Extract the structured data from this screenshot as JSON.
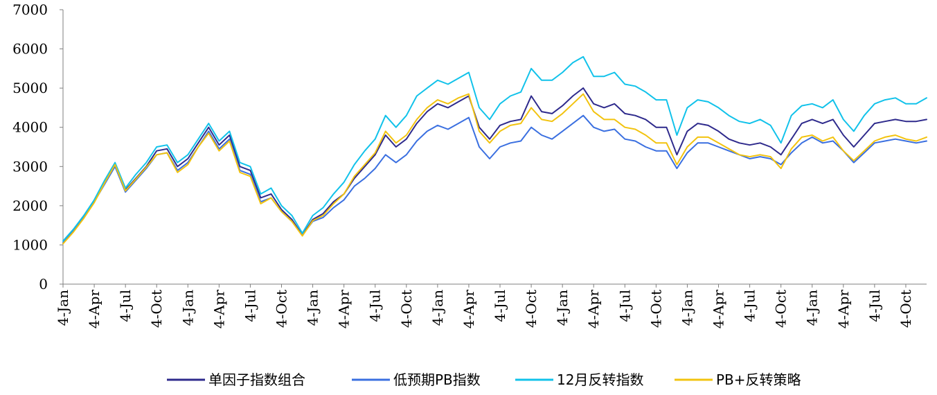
{
  "chart_data": {
    "type": "line",
    "title": "",
    "xlabel": "",
    "ylabel": "",
    "ylim": [
      0,
      7000
    ],
    "yticks": [
      0,
      1000,
      2000,
      3000,
      4000,
      5000,
      6000,
      7000
    ],
    "ytick_labels": [
      "0",
      "1000",
      "2000",
      "3000",
      "4000",
      "5000",
      "6000",
      "7000"
    ],
    "xticks": [
      0,
      3,
      6,
      9,
      12,
      15,
      18,
      21,
      24,
      27,
      30,
      33,
      36,
      39,
      42,
      45,
      48,
      51,
      54,
      57,
      60,
      63,
      66,
      69,
      72,
      75,
      78,
      81
    ],
    "xtick_labels": [
      "4-Jan",
      "4-Apr",
      "4-Jul",
      "4-Oct",
      "4-Jan",
      "4-Apr",
      "4-Jul",
      "4-Oct",
      "4-Jan",
      "4-Apr",
      "4-Jul",
      "4-Oct",
      "4-Jan",
      "4-Apr",
      "4-Jul",
      "4-Oct",
      "4-Jan",
      "4-Apr",
      "4-Jul",
      "4-Oct",
      "4-Jan",
      "4-Apr",
      "4-Jul",
      "4-Oct",
      "4-Jan",
      "4-Apr",
      "4-Jul",
      "4-Oct"
    ],
    "xlim": [
      0,
      83
    ],
    "grid": false,
    "legend_position": "bottom",
    "x": [
      0,
      1,
      2,
      3,
      4,
      5,
      6,
      7,
      8,
      9,
      10,
      11,
      12,
      13,
      14,
      15,
      16,
      17,
      18,
      19,
      20,
      21,
      22,
      23,
      24,
      25,
      26,
      27,
      28,
      29,
      30,
      31,
      32,
      33,
      34,
      35,
      36,
      37,
      38,
      39,
      40,
      41,
      42,
      43,
      44,
      45,
      46,
      47,
      48,
      49,
      50,
      51,
      52,
      53,
      54,
      55,
      56,
      57,
      58,
      59,
      60,
      61,
      62,
      63,
      64,
      65,
      66,
      67,
      68,
      69,
      70,
      71,
      72,
      73,
      74,
      75,
      76,
      77,
      78,
      79,
      80,
      81,
      82,
      83
    ],
    "series": [
      {
        "name": "单因子指数组合",
        "color": "#2e2a8c",
        "values": [
          1050,
          1350,
          1700,
          2100,
          2600,
          3050,
          2400,
          2700,
          3000,
          3400,
          3450,
          3000,
          3200,
          3600,
          4000,
          3550,
          3800,
          3000,
          2900,
          2200,
          2300,
          1900,
          1650,
          1250,
          1650,
          1800,
          2100,
          2300,
          2700,
          3000,
          3300,
          3800,
          3500,
          3700,
          4100,
          4400,
          4600,
          4500,
          4650,
          4800,
          4000,
          3700,
          4050,
          4150,
          4200,
          4800,
          4400,
          4350,
          4550,
          4800,
          5000,
          4600,
          4500,
          4600,
          4350,
          4300,
          4200,
          4000,
          4000,
          3300,
          3900,
          4100,
          4050,
          3900,
          3700,
          3600,
          3550,
          3600,
          3500,
          3300,
          3700,
          4100,
          4200,
          4100,
          4200,
          3800,
          3500,
          3800,
          4100,
          4150,
          4200,
          4150,
          4150,
          4200
        ]
      },
      {
        "name": "低预期PB指数",
        "color": "#3a6fe0",
        "values": [
          1050,
          1350,
          1700,
          2100,
          2550,
          3000,
          2350,
          2650,
          2950,
          3300,
          3350,
          2900,
          3100,
          3500,
          3900,
          3450,
          3700,
          2900,
          2800,
          2100,
          2200,
          1850,
          1600,
          1250,
          1600,
          1700,
          1950,
          2150,
          2500,
          2700,
          2950,
          3300,
          3100,
          3300,
          3650,
          3900,
          4050,
          3950,
          4100,
          4250,
          3500,
          3200,
          3500,
          3600,
          3650,
          4000,
          3800,
          3700,
          3900,
          4100,
          4300,
          4000,
          3900,
          3950,
          3700,
          3650,
          3500,
          3400,
          3400,
          2950,
          3350,
          3600,
          3600,
          3500,
          3400,
          3300,
          3200,
          3250,
          3200,
          3050,
          3350,
          3600,
          3750,
          3600,
          3650,
          3400,
          3100,
          3350,
          3600,
          3650,
          3700,
          3650,
          3600,
          3650
        ]
      },
      {
        "name": "12月反转指数",
        "color": "#11c2ea",
        "values": [
          1100,
          1400,
          1750,
          2150,
          2650,
          3100,
          2450,
          2800,
          3100,
          3500,
          3550,
          3100,
          3300,
          3700,
          4100,
          3650,
          3900,
          3100,
          3000,
          2300,
          2450,
          2000,
          1750,
          1300,
          1750,
          1950,
          2300,
          2600,
          3050,
          3400,
          3700,
          4300,
          4000,
          4300,
          4800,
          5000,
          5200,
          5100,
          5250,
          5400,
          4500,
          4200,
          4600,
          4800,
          4900,
          5500,
          5200,
          5200,
          5400,
          5650,
          5800,
          5300,
          5300,
          5400,
          5100,
          5050,
          4900,
          4700,
          4700,
          3800,
          4500,
          4700,
          4650,
          4500,
          4300,
          4150,
          4100,
          4200,
          4050,
          3600,
          4300,
          4550,
          4600,
          4500,
          4700,
          4200,
          3900,
          4300,
          4600,
          4700,
          4750,
          4600,
          4600,
          4750
        ]
      },
      {
        "name": "PB+反转策略",
        "color": "#f2c30f",
        "values": [
          1030,
          1330,
          1680,
          2080,
          2580,
          3050,
          2380,
          2680,
          2980,
          3300,
          3350,
          2850,
          3050,
          3500,
          3850,
          3400,
          3650,
          2850,
          2750,
          2050,
          2200,
          1850,
          1600,
          1230,
          1620,
          1750,
          2050,
          2300,
          2750,
          3050,
          3350,
          3900,
          3600,
          3800,
          4200,
          4500,
          4700,
          4600,
          4750,
          4850,
          3900,
          3600,
          3900,
          4050,
          4100,
          4500,
          4200,
          4150,
          4350,
          4600,
          4850,
          4400,
          4200,
          4200,
          4000,
          3950,
          3800,
          3600,
          3600,
          3050,
          3500,
          3750,
          3750,
          3600,
          3450,
          3300,
          3250,
          3300,
          3250,
          2950,
          3450,
          3750,
          3800,
          3650,
          3750,
          3400,
          3150,
          3400,
          3650,
          3750,
          3800,
          3700,
          3650,
          3750
        ]
      }
    ]
  }
}
